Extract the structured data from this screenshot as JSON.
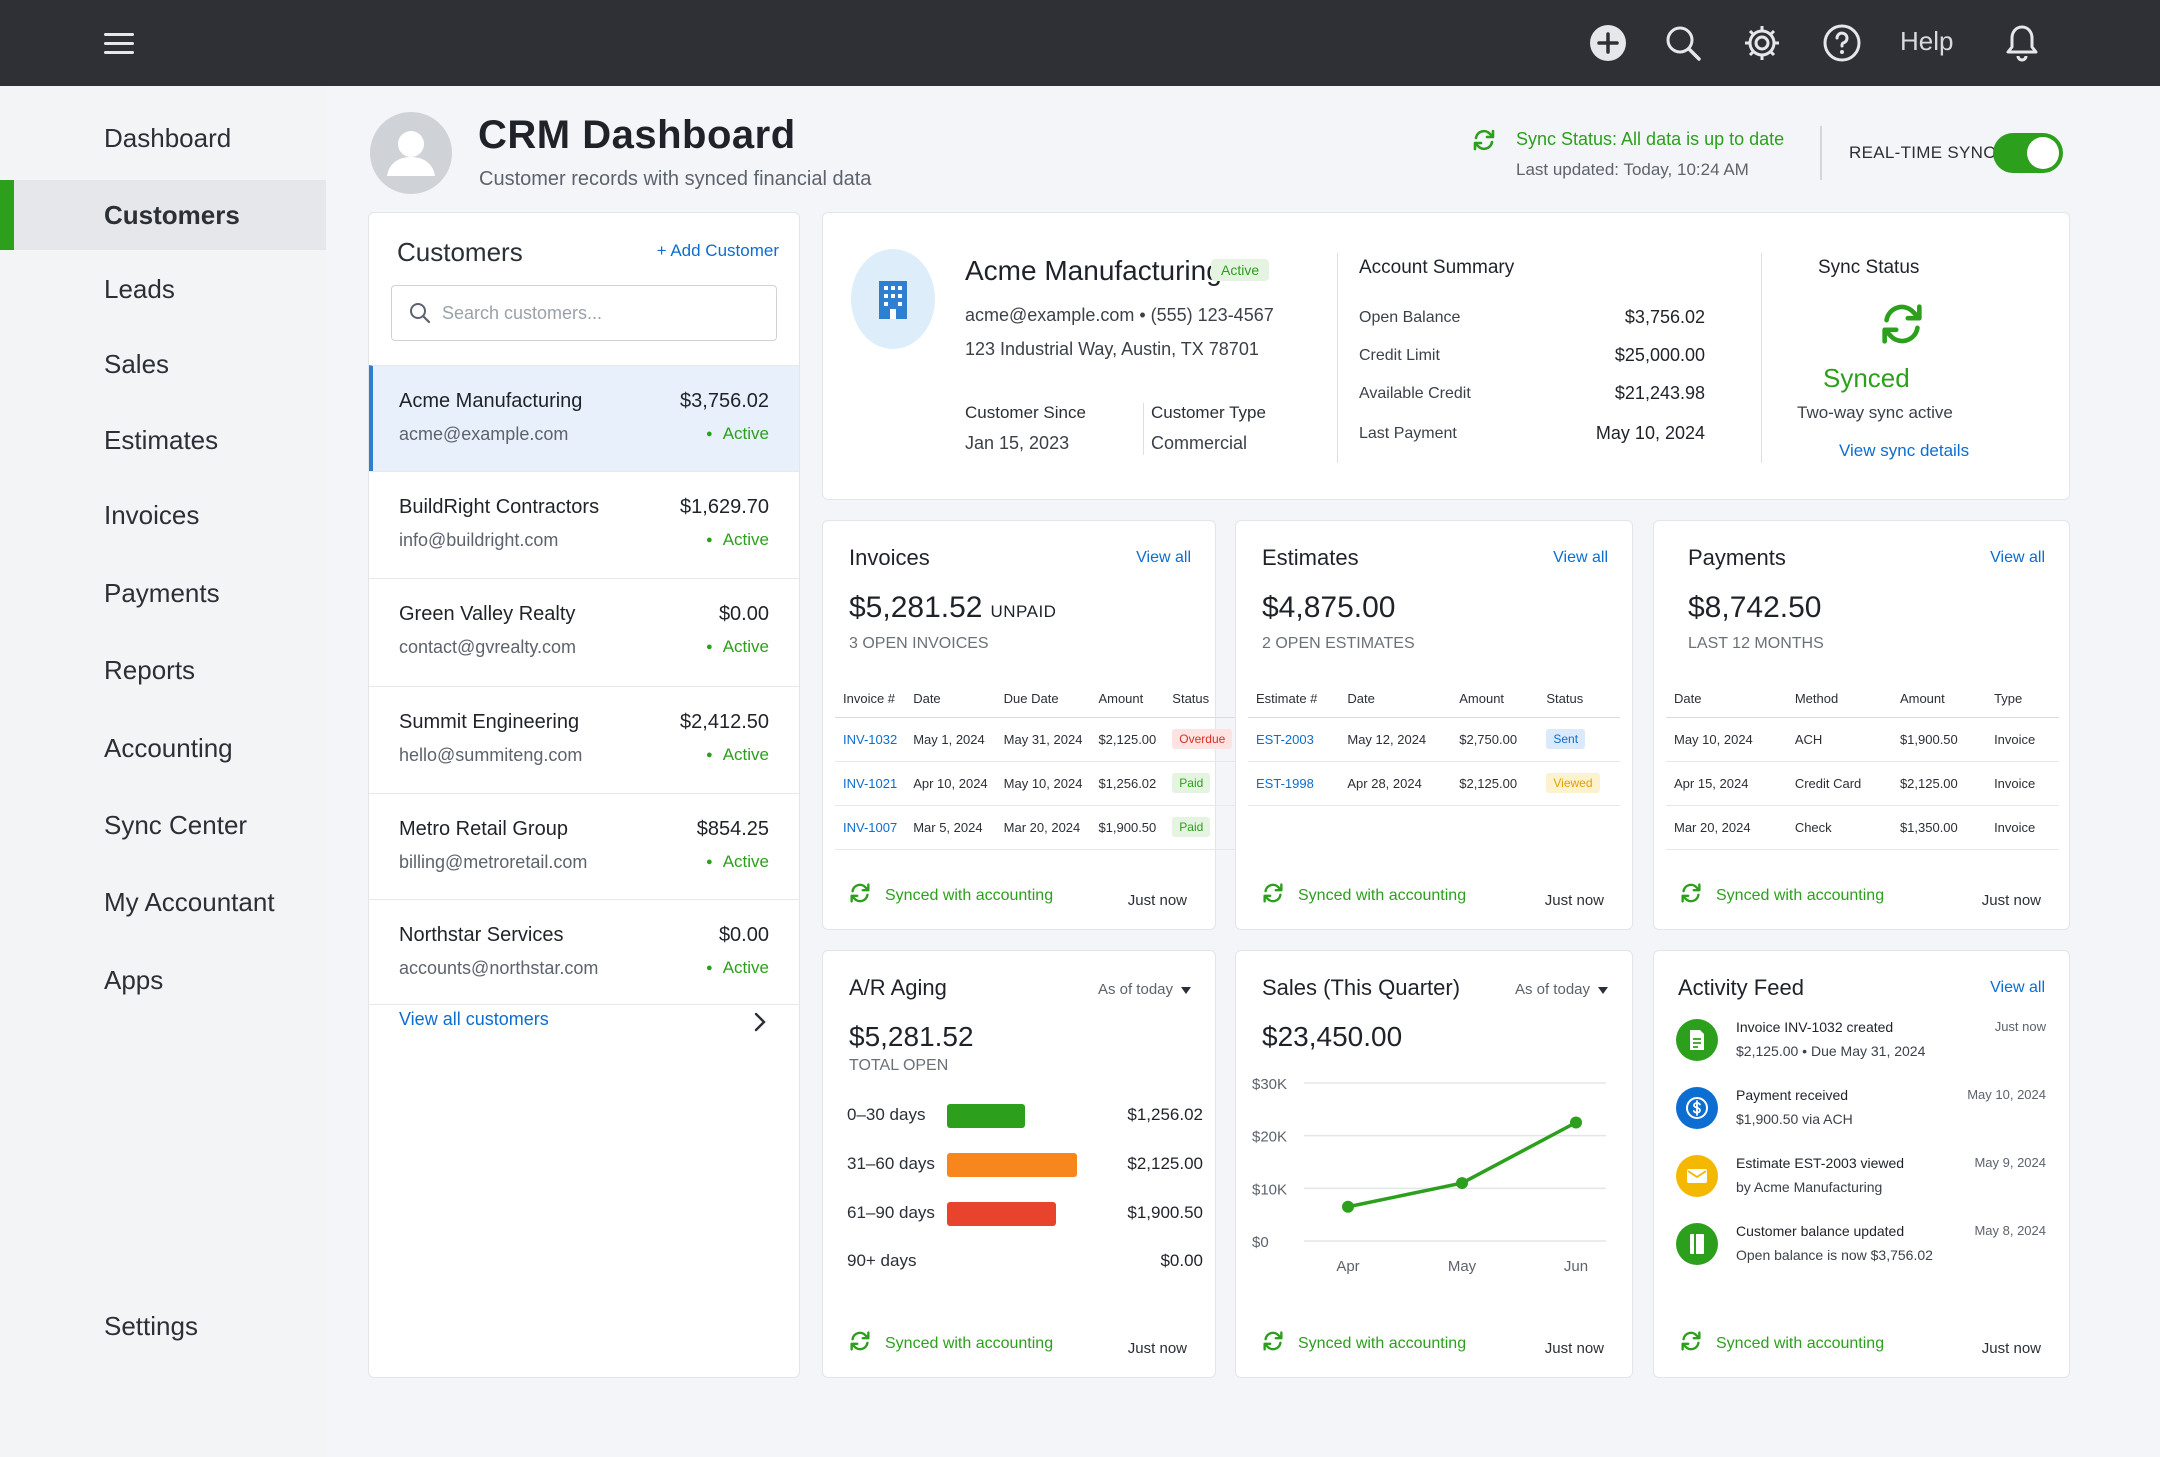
{
  "topbar": {
    "help_label": "Help",
    "icons": [
      "menu-icon",
      "add-icon",
      "search-icon",
      "gear-icon",
      "help-icon",
      "bell-icon"
    ]
  },
  "sidebar": {
    "items": [
      {
        "label": "Dashboard"
      },
      {
        "label": "Customers",
        "active": true
      },
      {
        "label": "Leads"
      },
      {
        "label": "Sales"
      },
      {
        "label": "Estimates"
      },
      {
        "label": "Invoices"
      },
      {
        "label": "Payments"
      },
      {
        "label": "Reports"
      },
      {
        "label": "Accounting"
      },
      {
        "label": "Sync Center"
      },
      {
        "label": "My Accountant"
      },
      {
        "label": "Apps"
      }
    ],
    "settings": "Settings"
  },
  "header": {
    "title": "CRM Dashboard",
    "subtitle": "Customer records with synced financial data",
    "sync_status": "Sync Status: All data is up to date",
    "last_updated": "Last updated: Today, 10:24 AM",
    "realtime_label": "REAL-TIME SYNC",
    "realtime_on": true
  },
  "customers": {
    "title": "Customers",
    "add_label": "+ Add Customer",
    "search_placeholder": "Search customers...",
    "list": [
      {
        "name": "Acme Manufacturing",
        "email": "acme@example.com",
        "amount": "$3,756.02",
        "status": "Active"
      },
      {
        "name": "BuildRight Contractors",
        "email": "info@buildright.com",
        "amount": "$1,629.70",
        "status": "Active"
      },
      {
        "name": "Green Valley Realty",
        "email": "contact@gvrealty.com",
        "amount": "$0.00",
        "status": "Active"
      },
      {
        "name": "Summit Engineering",
        "email": "hello@summiteng.com",
        "amount": "$2,412.50",
        "status": "Active"
      },
      {
        "name": "Metro Retail Group",
        "email": "billing@metroretail.com",
        "amount": "$854.25",
        "status": "Active"
      },
      {
        "name": "Northstar Services",
        "email": "accounts@northstar.com",
        "amount": "$0.00",
        "status": "Active"
      }
    ],
    "view_all": "View all customers"
  },
  "detail": {
    "name": "Acme Manufacturing",
    "status": "Active",
    "contact": "acme@example.com  •  (555) 123-4567",
    "address": "123 Industrial Way, Austin, TX 78701",
    "since_label": "Customer Since",
    "since_value": "Jan 15, 2023",
    "type_label": "Customer Type",
    "type_value": "Commercial",
    "account": {
      "title": "Account Summary",
      "rows": [
        {
          "label": "Open Balance",
          "value": "$3,756.02"
        },
        {
          "label": "Credit Limit",
          "value": "$25,000.00"
        },
        {
          "label": "Available Credit",
          "value": "$21,243.98"
        },
        {
          "label": "Last Payment",
          "value": "May 10, 2024"
        }
      ]
    },
    "sync": {
      "title": "Sync Status",
      "state": "Synced",
      "sub": "Two-way sync active",
      "link": "View sync details"
    }
  },
  "invoices": {
    "title": "Invoices",
    "link": "View all",
    "amount": "$5,281.52",
    "unit": "UNPAID",
    "sub": "3 OPEN INVOICES",
    "columns": [
      "Invoice #",
      "Date",
      "Due Date",
      "Amount",
      "Status"
    ],
    "rows": [
      {
        "id": "INV-1032",
        "date": "May 1, 2024",
        "due": "May 31, 2024",
        "amount": "$2,125.00",
        "status": "Overdue"
      },
      {
        "id": "INV-1021",
        "date": "Apr 10, 2024",
        "due": "May 10, 2024",
        "amount": "$1,256.02",
        "status": "Paid"
      },
      {
        "id": "INV-1007",
        "date": "Mar 5, 2024",
        "due": "Mar 20, 2024",
        "amount": "$1,900.50",
        "status": "Paid"
      }
    ],
    "sync_text": "Synced with accounting",
    "sync_when": "Just now"
  },
  "estimates": {
    "title": "Estimates",
    "link": "View all",
    "amount": "$4,875.00",
    "sub": "2 OPEN ESTIMATES",
    "columns": [
      "Estimate #",
      "Date",
      "Amount",
      "Status"
    ],
    "rows": [
      {
        "id": "EST-2003",
        "date": "May 12, 2024",
        "amount": "$2,750.00",
        "status": "Sent"
      },
      {
        "id": "EST-1998",
        "date": "Apr 28, 2024",
        "amount": "$2,125.00",
        "status": "Viewed"
      }
    ],
    "sync_text": "Synced with accounting",
    "sync_when": "Just now"
  },
  "payments": {
    "title": "Payments",
    "link": "View all",
    "amount": "$8,742.50",
    "sub": "LAST 12 MONTHS",
    "columns": [
      "Date",
      "Method",
      "Amount",
      "Type"
    ],
    "rows": [
      {
        "date": "May 10, 2024",
        "method": "ACH",
        "amount": "$1,900.50",
        "type": "Invoice"
      },
      {
        "date": "Apr 15, 2024",
        "method": "Credit Card",
        "amount": "$2,125.00",
        "type": "Invoice"
      },
      {
        "date": "Mar 20, 2024",
        "method": "Check",
        "amount": "$1,350.00",
        "type": "Invoice"
      }
    ],
    "sync_text": "Synced with accounting",
    "sync_when": "Just now"
  },
  "aging": {
    "title": "A/R Aging",
    "filter": "As of today",
    "amount": "$5,281.52",
    "sub": "TOTAL OPEN",
    "rows": [
      {
        "label": "0–30 days",
        "value": "$1,256.02",
        "fraction": 0.6,
        "color": "#2ca01c"
      },
      {
        "label": "31–60 days",
        "value": "$2,125.00",
        "fraction": 1.0,
        "color": "#f7861c"
      },
      {
        "label": "61–90 days",
        "value": "$1,900.50",
        "fraction": 0.84,
        "color": "#e8432d"
      },
      {
        "label": "90+ days",
        "value": "$0.00",
        "fraction": 0,
        "color": "#cccccc"
      }
    ],
    "sync_text": "Synced with accounting",
    "sync_when": "Just now"
  },
  "sales": {
    "title": "Sales (This Quarter)",
    "filter": "As of today",
    "amount": "$23,450.00",
    "sync_text": "Synced with accounting",
    "sync_when": "Just now"
  },
  "chart_data": {
    "type": "line",
    "title": "Sales (This Quarter)",
    "categories": [
      "Apr",
      "May",
      "Jun"
    ],
    "values": [
      6500,
      11000,
      22500
    ],
    "yticks": [
      "$0",
      "$10K",
      "$20K",
      "$30K"
    ],
    "ylim": [
      0,
      30000
    ],
    "grid": true,
    "color": "#2ca01c"
  },
  "activity": {
    "title": "Activity Feed",
    "link": "View all",
    "items": [
      {
        "t1": "Invoice INV-1032 created",
        "t2": "$2,125.00  •  Due May 31, 2024",
        "when": "Just now",
        "icon": "document-icon",
        "color": "#2ca01c"
      },
      {
        "t1": "Payment received",
        "t2": "$1,900.50 via ACH",
        "when": "May 10, 2024",
        "icon": "dollar-icon",
        "color": "#0b6ed0"
      },
      {
        "t1": "Estimate EST-2003 viewed",
        "t2": "by Acme Manufacturing",
        "when": "May 9, 2024",
        "icon": "mail-icon",
        "color": "#f5b800"
      },
      {
        "t1": "Customer balance updated",
        "t2": "Open balance is now $3,756.02",
        "when": "May 8, 2024",
        "icon": "ledger-icon",
        "color": "#2ca01c"
      }
    ],
    "sync_text": "Synced with accounting",
    "sync_when": "Just now"
  }
}
